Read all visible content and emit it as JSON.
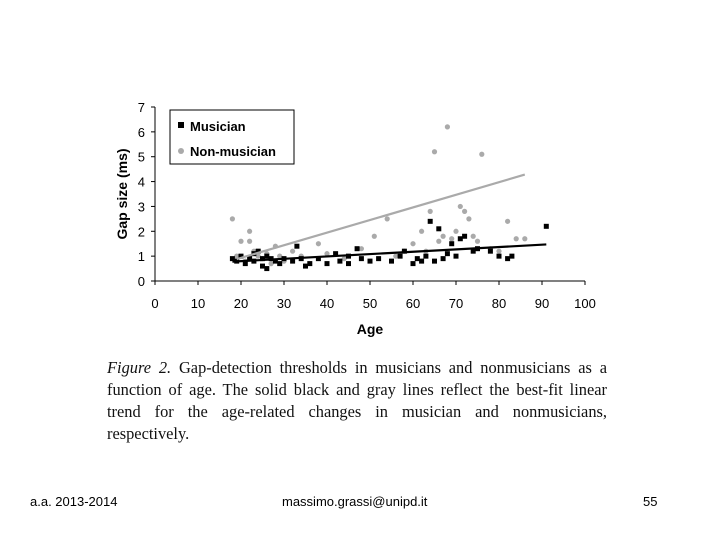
{
  "chart_data": {
    "type": "scatter",
    "xlabel": "Age",
    "ylabel": "Gap size (ms)",
    "xlim": [
      0,
      100
    ],
    "ylim": [
      0,
      7
    ],
    "x_ticks": [
      "0",
      "10",
      "20",
      "30",
      "40",
      "50",
      "60",
      "70",
      "80",
      "90",
      "100"
    ],
    "y_ticks": [
      "0",
      "1",
      "2",
      "3",
      "4",
      "5",
      "6",
      "7"
    ],
    "legend": [
      "Musician",
      "Non-musician"
    ],
    "legend_position": "top-left",
    "series": [
      {
        "name": "Musician",
        "color": "#000000",
        "marker": "square",
        "points": [
          [
            18,
            0.9
          ],
          [
            19,
            0.8
          ],
          [
            20,
            1.0
          ],
          [
            21,
            0.7
          ],
          [
            22,
            0.9
          ],
          [
            23,
            1.1
          ],
          [
            23,
            0.8
          ],
          [
            24,
            1.2
          ],
          [
            25,
            0.9
          ],
          [
            25,
            0.6
          ],
          [
            26,
            1.0
          ],
          [
            26,
            0.5
          ],
          [
            27,
            0.9
          ],
          [
            28,
            0.8
          ],
          [
            29,
            0.7
          ],
          [
            30,
            0.9
          ],
          [
            32,
            0.8
          ],
          [
            33,
            1.4
          ],
          [
            34,
            0.9
          ],
          [
            35,
            0.6
          ],
          [
            36,
            0.7
          ],
          [
            38,
            0.9
          ],
          [
            40,
            0.7
          ],
          [
            42,
            1.1
          ],
          [
            43,
            0.8
          ],
          [
            45,
            0.7
          ],
          [
            45,
            1.0
          ],
          [
            47,
            1.3
          ],
          [
            48,
            0.9
          ],
          [
            50,
            0.8
          ],
          [
            52,
            0.9
          ],
          [
            55,
            0.8
          ],
          [
            57,
            1.0
          ],
          [
            58,
            1.2
          ],
          [
            60,
            0.7
          ],
          [
            61,
            0.9
          ],
          [
            62,
            0.8
          ],
          [
            63,
            1.0
          ],
          [
            64,
            2.4
          ],
          [
            65,
            0.8
          ],
          [
            66,
            2.1
          ],
          [
            67,
            0.9
          ],
          [
            68,
            1.1
          ],
          [
            69,
            1.5
          ],
          [
            70,
            1.0
          ],
          [
            71,
            1.7
          ],
          [
            72,
            1.8
          ],
          [
            74,
            1.2
          ],
          [
            75,
            1.3
          ],
          [
            78,
            1.2
          ],
          [
            80,
            1.0
          ],
          [
            82,
            0.9
          ],
          [
            83,
            1.0
          ],
          [
            91,
            2.2
          ]
        ],
        "fit_line": [
          [
            18,
            0.78
          ],
          [
            91,
            1.47
          ]
        ]
      },
      {
        "name": "Non-musician",
        "color": "#aaaaaa",
        "marker": "circle",
        "points": [
          [
            18,
            2.5
          ],
          [
            19,
            1.0
          ],
          [
            20,
            1.6
          ],
          [
            21,
            0.8
          ],
          [
            22,
            2.0
          ],
          [
            22,
            1.6
          ],
          [
            23,
            1.2
          ],
          [
            24,
            1.0
          ],
          [
            25,
            0.9
          ],
          [
            26,
            1.1
          ],
          [
            27,
            0.7
          ],
          [
            28,
            1.4
          ],
          [
            29,
            1.0
          ],
          [
            30,
            0.8
          ],
          [
            32,
            1.2
          ],
          [
            34,
            1.0
          ],
          [
            38,
            1.5
          ],
          [
            40,
            1.1
          ],
          [
            44,
            0.9
          ],
          [
            48,
            1.3
          ],
          [
            51,
            1.8
          ],
          [
            54,
            2.5
          ],
          [
            56,
            1.0
          ],
          [
            58,
            1.2
          ],
          [
            60,
            1.5
          ],
          [
            62,
            2.0
          ],
          [
            63,
            1.2
          ],
          [
            64,
            2.8
          ],
          [
            65,
            5.2
          ],
          [
            66,
            1.6
          ],
          [
            67,
            1.8
          ],
          [
            68,
            6.2
          ],
          [
            69,
            1.7
          ],
          [
            70,
            2.0
          ],
          [
            71,
            3.0
          ],
          [
            72,
            2.8
          ],
          [
            73,
            2.5
          ],
          [
            74,
            1.8
          ],
          [
            75,
            1.6
          ],
          [
            76,
            5.1
          ],
          [
            78,
            1.3
          ],
          [
            80,
            1.2
          ],
          [
            82,
            2.4
          ],
          [
            84,
            1.7
          ],
          [
            86,
            1.7
          ]
        ],
        "fit_line": [
          [
            19,
            0.88
          ],
          [
            86,
            4.28
          ]
        ]
      }
    ]
  },
  "caption": {
    "figure_label": "Figure 2.",
    "text": "Gap-detection thresholds in musicians and nonmusicians as a function of age. The solid black and gray lines reflect the best-fit linear trend for the age-related changes in musician and nonmusicians, respectively."
  },
  "footer": {
    "left": "a.a. 2013-2014",
    "center": "massimo.grassi@unipd.it",
    "right": "55"
  }
}
